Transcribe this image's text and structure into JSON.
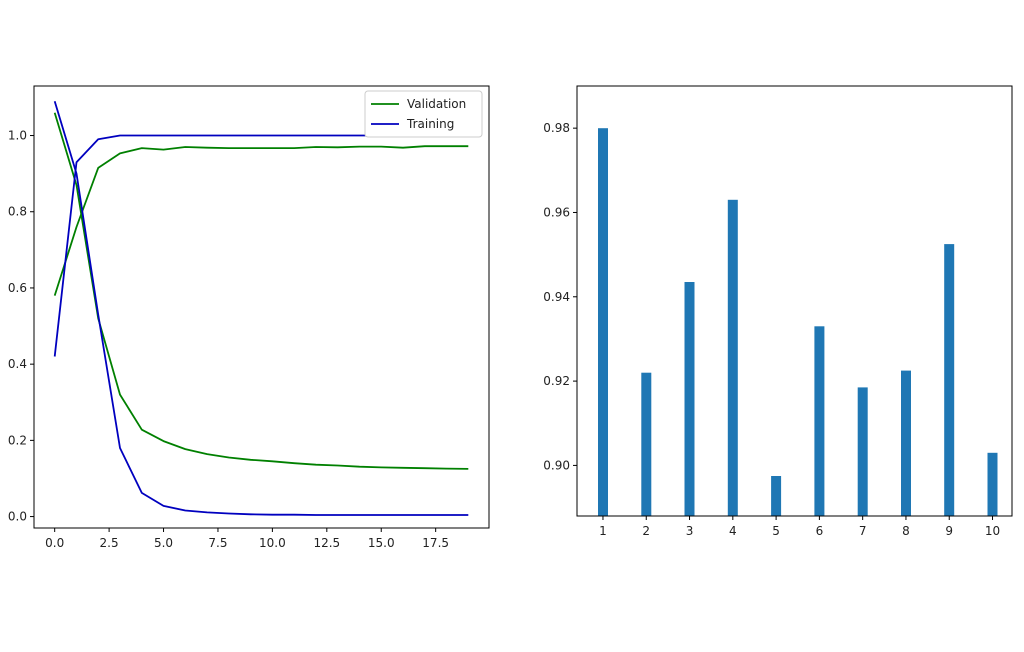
{
  "chart_data": [
    {
      "type": "line",
      "title": "",
      "xlabel": "",
      "ylabel": "",
      "xlim": [
        -0.95,
        19.95
      ],
      "ylim": [
        -0.03,
        1.13
      ],
      "xticks": [
        0,
        2.5,
        5,
        7.5,
        10,
        12.5,
        15,
        17.5
      ],
      "xtick_labels": [
        "0.0",
        "2.5",
        "5.0",
        "7.5",
        "10.0",
        "12.5",
        "15.0",
        "17.5"
      ],
      "yticks": [
        0,
        0.2,
        0.4,
        0.6,
        0.8,
        1.0
      ],
      "ytick_labels": [
        "0.0",
        "0.2",
        "0.4",
        "0.6",
        "0.8",
        "1.0"
      ],
      "legend": {
        "position": "top-right",
        "entries": [
          "Validation",
          "Training"
        ]
      },
      "grid": false,
      "series": [
        {
          "name": "Validation",
          "color": "#008000",
          "x": [
            0,
            1,
            2,
            3,
            4,
            5,
            6,
            7,
            8,
            9,
            10,
            11,
            12,
            13,
            14,
            15,
            16,
            17,
            18,
            19
          ],
          "y": [
            0.58,
            0.76,
            0.915,
            0.953,
            0.967,
            0.963,
            0.97,
            0.968,
            0.967,
            0.967,
            0.967,
            0.967,
            0.97,
            0.969,
            0.971,
            0.971,
            0.968,
            0.972,
            0.972,
            0.972
          ]
        },
        {
          "name": "Validation",
          "color": "#008000",
          "x": [
            0,
            1,
            2,
            3,
            4,
            5,
            6,
            7,
            8,
            9,
            10,
            11,
            12,
            13,
            14,
            15,
            16,
            17,
            18,
            19
          ],
          "y": [
            1.06,
            0.87,
            0.52,
            0.32,
            0.228,
            0.198,
            0.177,
            0.164,
            0.155,
            0.149,
            0.145,
            0.14,
            0.136,
            0.134,
            0.131,
            0.129,
            0.128,
            0.127,
            0.126,
            0.125
          ]
        },
        {
          "name": "Training",
          "color": "#0000bf",
          "x": [
            0,
            1,
            2,
            3,
            4,
            5,
            6,
            7,
            8,
            9,
            10,
            11,
            12,
            13,
            14,
            15,
            16,
            17,
            18,
            19
          ],
          "y": [
            0.42,
            0.93,
            0.99,
            1.0,
            1.0,
            1.0,
            1.0,
            1.0,
            1.0,
            1.0,
            1.0,
            1.0,
            1.0,
            1.0,
            1.0,
            1.0,
            1.0,
            1.0,
            1.0,
            1.0
          ]
        },
        {
          "name": "Training",
          "color": "#0000bf",
          "x": [
            0,
            1,
            2,
            3,
            4,
            5,
            6,
            7,
            8,
            9,
            10,
            11,
            12,
            13,
            14,
            15,
            16,
            17,
            18,
            19
          ],
          "y": [
            1.09,
            0.9,
            0.53,
            0.18,
            0.062,
            0.028,
            0.016,
            0.011,
            0.008,
            0.006,
            0.005,
            0.005,
            0.004,
            0.004,
            0.004,
            0.004,
            0.004,
            0.004,
            0.004,
            0.004
          ]
        }
      ]
    },
    {
      "type": "bar",
      "title": "",
      "xlabel": "",
      "ylabel": "",
      "categories": [
        "1",
        "2",
        "3",
        "4",
        "5",
        "6",
        "7",
        "8",
        "9",
        "10"
      ],
      "values": [
        0.98,
        0.922,
        0.9435,
        0.963,
        0.8975,
        0.933,
        0.9185,
        0.9225,
        0.9525,
        0.903
      ],
      "color": "#1f77b4",
      "ylim": [
        0.888,
        0.99
      ],
      "yticks": [
        0.9,
        0.92,
        0.94,
        0.96,
        0.98
      ],
      "ytick_labels": [
        "0.90",
        "0.92",
        "0.94",
        "0.96",
        "0.98"
      ],
      "grid": false
    }
  ]
}
